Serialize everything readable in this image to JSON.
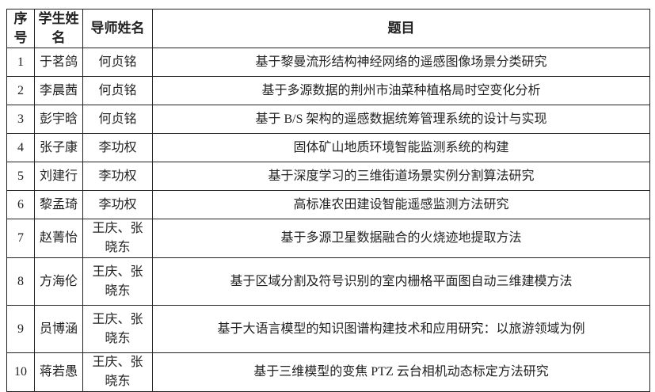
{
  "headers": [
    "序号",
    "学生姓名",
    "导师姓名",
    "题目"
  ],
  "rows": [
    {
      "no": "1",
      "student": "于茗鸽",
      "advisor": "何贞铭",
      "title": "基于黎曼流形结构神经网络的遥感图像场景分类研究"
    },
    {
      "no": "2",
      "student": "李晨茜",
      "advisor": "何贞铭",
      "title": "基于多源数据的荆州市油菜种植格局时空变化分析"
    },
    {
      "no": "3",
      "student": "彭宇晗",
      "advisor": "何贞铭",
      "title": "基于 B/S 架构的遥感数据统筹管理系统的设计与实现"
    },
    {
      "no": "4",
      "student": "张子康",
      "advisor": "李功权",
      "title": "固体矿山地质环境智能监测系统的构建"
    },
    {
      "no": "5",
      "student": "刘建行",
      "advisor": "李功权",
      "title": "基于深度学习的三维街道场景实例分割算法研究"
    },
    {
      "no": "6",
      "student": "黎孟琦",
      "advisor": "李功权",
      "title": "高标准农田建设智能遥感监测方法研究"
    },
    {
      "no": "7",
      "student": "赵菁怡",
      "advisor": "王庆、张晓东",
      "title": "基于多源卫星数据融合的火烧迹地提取方法"
    },
    {
      "no": "8",
      "student": "方海伦",
      "advisor": "王庆、张晓东",
      "title": "基于区域分割及符号识别的室内栅格平面图自动三维建模方法"
    },
    {
      "no": "9",
      "student": "员博涵",
      "advisor": "王庆、张晓东",
      "title": "基于大语言模型的知识图谱构建技术和应用研究：以旅游领域为例"
    },
    {
      "no": "10",
      "student": "蒋若愚",
      "advisor": "王庆、张晓东",
      "title": "基于三维模型的变焦 PTZ 云台相机动态标定方法研究"
    }
  ]
}
